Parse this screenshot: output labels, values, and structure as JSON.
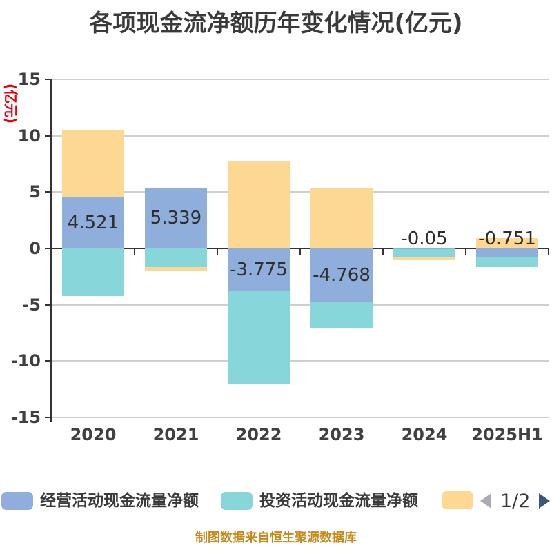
{
  "title": "各项现金流净额历年变化情况(亿元)",
  "y_axis": {
    "name": "(亿元)",
    "ticks": [
      15,
      10,
      5,
      0,
      -5,
      -10,
      -15
    ]
  },
  "x_axis": {
    "labels": [
      "2020",
      "2021",
      "2022",
      "2023",
      "2024",
      "2025H1"
    ]
  },
  "chart_data": {
    "type": "bar",
    "stacked": true,
    "title": "各项现金流净额历年变化情况(亿元)",
    "ylabel": "(亿元)",
    "ylim": [
      -15,
      15
    ],
    "y_interval": 5,
    "grid": true,
    "legend_position": "bottom",
    "categories": [
      "2020",
      "2021",
      "2022",
      "2023",
      "2024",
      "2025H1"
    ],
    "series": [
      {
        "name": "经营活动现金流量净额",
        "color": "#8FAEDC",
        "values": [
          4.521,
          5.339,
          -3.775,
          -4.768,
          -0.05,
          -0.751
        ],
        "data_labels": [
          "4.521",
          "5.339",
          "-3.775",
          "-4.768",
          "-0.05",
          "-0.751"
        ]
      },
      {
        "name": "投资活动现金流量净额",
        "color": "#87D6D9",
        "values": [
          -4.2,
          -1.65,
          -8.2,
          -2.28,
          -0.7,
          -0.9
        ]
      },
      {
        "name": "",
        "color": "#FCD893",
        "values": [
          6.0,
          -0.35,
          7.8,
          5.4,
          -0.3,
          0.9
        ]
      }
    ]
  },
  "legend": {
    "items": [
      {
        "label": "经营活动现金流量净额",
        "color": "#8FAEDC"
      },
      {
        "label": "投资活动现金流量净额",
        "color": "#87D6D9"
      },
      {
        "label": "",
        "color": "#FCD893"
      }
    ],
    "pagination": {
      "text": "1/2",
      "prev_icon": "left-triangle",
      "next_icon": "right-triangle"
    }
  },
  "footer": "制图数据来自恒生聚源数据库",
  "colors": {
    "background": "#FFFFFF",
    "title_text": "#3A3A3A",
    "axis_text": "#404040",
    "axis_line": "#333333",
    "grid_line": "#CFCFCF",
    "y_name_red": "#E60012",
    "value_label": "#2E2E2E",
    "footer_gold": "#C6891B",
    "pg_prev": "#ABABB3",
    "pg_next": "#3E5779"
  }
}
